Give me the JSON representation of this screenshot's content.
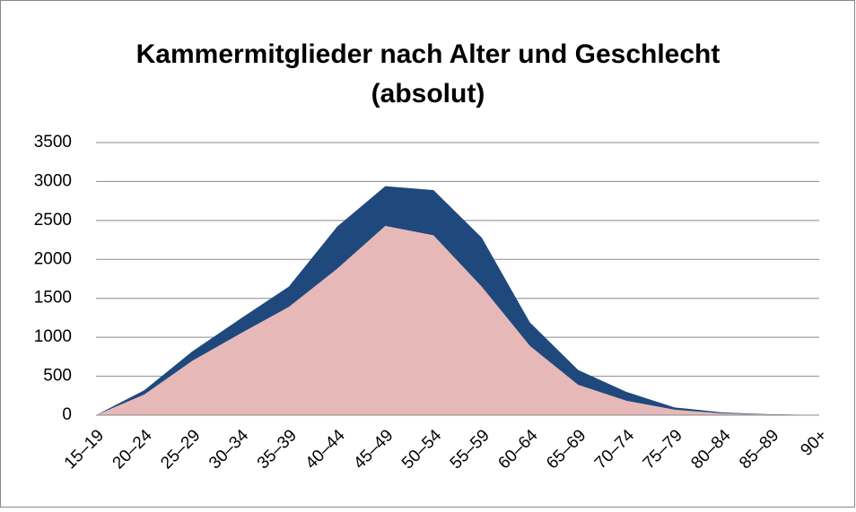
{
  "chart_data": {
    "type": "area",
    "title": [
      "Kammermitglieder nach Alter und Geschlecht",
      "(absolut)"
    ],
    "categories": [
      "15–19",
      "20–24",
      "25–29",
      "30–34",
      "35–39",
      "40–44",
      "45–49",
      "50–54",
      "55–59",
      "60–64",
      "65–69",
      "70–74",
      "75–79",
      "80–84",
      "85–89",
      "90+"
    ],
    "series": [
      {
        "color": "#1f497d",
        "values": [
          0,
          320,
          820,
          1240,
          1650,
          2420,
          2940,
          2890,
          2280,
          1190,
          580,
          300,
          100,
          35,
          12,
          0
        ]
      },
      {
        "color": "#e6b9b8",
        "values": [
          0,
          265,
          700,
          1050,
          1390,
          1880,
          2430,
          2310,
          1650,
          890,
          390,
          185,
          70,
          23,
          8,
          0
        ]
      }
    ],
    "ylim": [
      0,
      3500
    ],
    "yticks": [
      0,
      500,
      1000,
      1500,
      2000,
      2500,
      3000,
      3500
    ],
    "grid": true
  }
}
